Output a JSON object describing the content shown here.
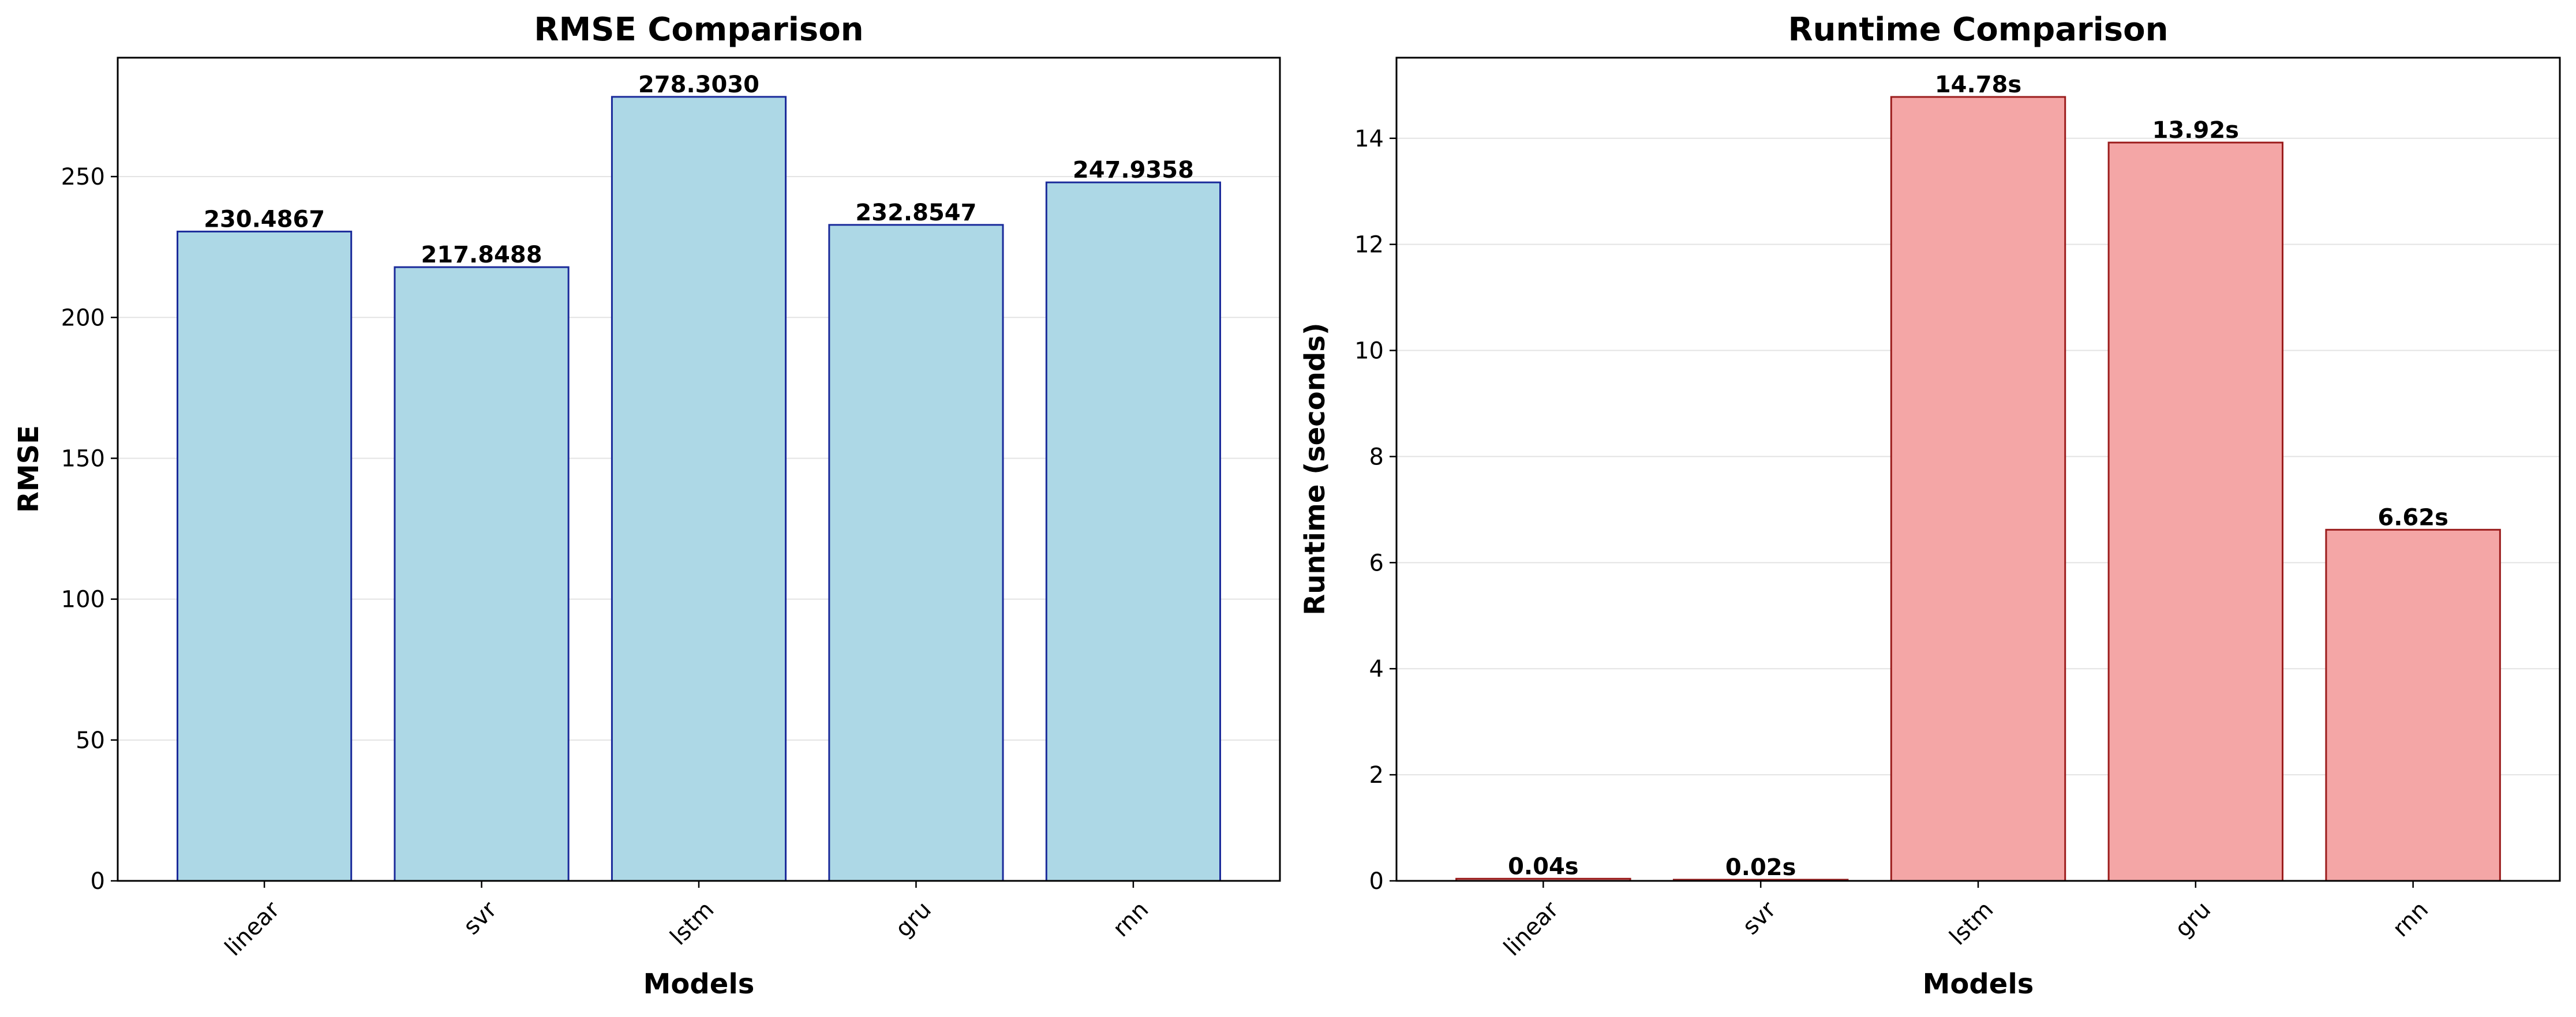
{
  "figure": {
    "background": "#ffffff",
    "grid": "y-axis only",
    "legend": "none"
  },
  "chart_data": [
    {
      "type": "bar",
      "title": "RMSE Comparison",
      "xlabel": "Models",
      "ylabel": "RMSE",
      "categories": [
        "linear",
        "svr",
        "lstm",
        "gru",
        "rnn"
      ],
      "values": [
        230.4867,
        217.8488,
        278.303,
        232.8547,
        247.9358
      ],
      "data_labels": [
        "230.4867",
        "217.8488",
        "278.3030",
        "232.8547",
        "247.9358"
      ],
      "ylim": [
        0,
        292.2
      ],
      "yticks": [
        0,
        50,
        100,
        150,
        200,
        250
      ],
      "bar_color": "#add8e6",
      "edge_color": "#1a2a9a",
      "grid": true
    },
    {
      "type": "bar",
      "title": "Runtime Comparison",
      "xlabel": "Models",
      "ylabel": "Runtime (seconds)",
      "categories": [
        "linear",
        "svr",
        "lstm",
        "gru",
        "rnn"
      ],
      "values": [
        0.04,
        0.02,
        14.78,
        13.92,
        6.62
      ],
      "data_labels": [
        "0.04s",
        "0.02s",
        "14.78s",
        "13.92s",
        "6.62s"
      ],
      "ylim": [
        0,
        15.52
      ],
      "yticks": [
        0,
        2,
        4,
        6,
        8,
        10,
        12,
        14
      ],
      "bar_color": "#f4a6a6",
      "edge_color": "#9b1c1c",
      "grid": true
    }
  ]
}
